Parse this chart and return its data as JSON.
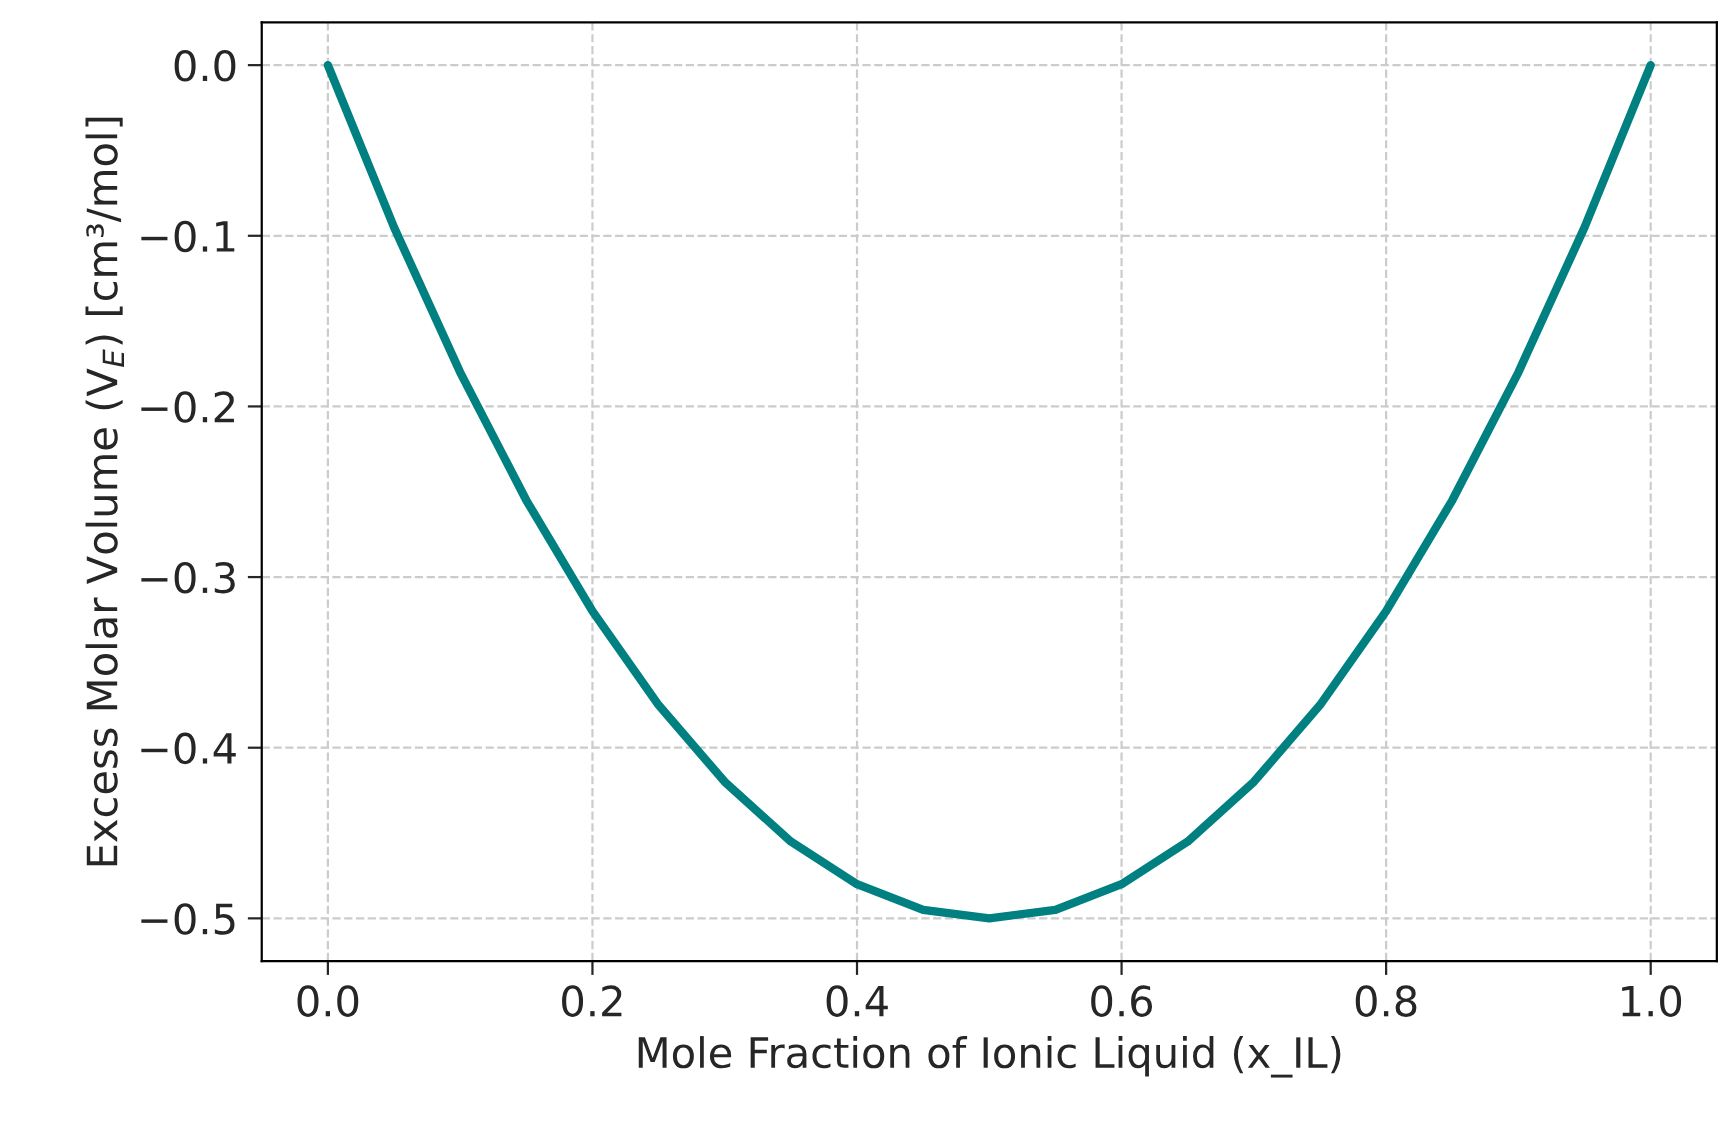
{
  "chart_data": {
    "type": "line",
    "xlabel": "Mole Fraction of Ionic Liquid (x_IL)",
    "ylabel": "Excess Molar Volume (V$_{E}$) [cm³/mol]",
    "x": [
      0,
      0.05,
      0.1,
      0.15,
      0.2,
      0.25,
      0.3,
      0.35,
      0.4,
      0.45,
      0.5,
      0.55,
      0.6,
      0.65,
      0.7,
      0.75,
      0.8,
      0.85,
      0.9,
      0.95,
      1.0
    ],
    "series": [
      {
        "color": "#008080",
        "values": [
          0,
          -0.095,
          -0.18,
          -0.255,
          -0.32,
          -0.375,
          -0.42,
          -0.455,
          -0.48,
          -0.495,
          -0.5,
          -0.495,
          -0.48,
          -0.455,
          -0.42,
          -0.375,
          -0.32,
          -0.255,
          -0.18,
          -0.095,
          0
        ]
      }
    ],
    "xlim": [
      -0.05,
      1.05
    ],
    "ylim": [
      -0.525,
      0.025
    ],
    "xticks": [
      {
        "value": 0,
        "label": "0.0"
      },
      0.2,
      0.4,
      0.6,
      0.8,
      {
        "value": 1,
        "label": "1.0"
      }
    ],
    "yticks": [
      {
        "value": 0,
        "label": "0.0"
      },
      {
        "value": -0.1,
        "label": "−0.1"
      },
      {
        "value": -0.2,
        "label": "−0.2"
      },
      {
        "value": -0.3,
        "label": "−0.3"
      },
      {
        "value": -0.4,
        "label": "−0.4"
      },
      {
        "value": -0.5,
        "label": "−0.5"
      }
    ],
    "grid": true,
    "line_style": "solid",
    "marker": "none"
  }
}
